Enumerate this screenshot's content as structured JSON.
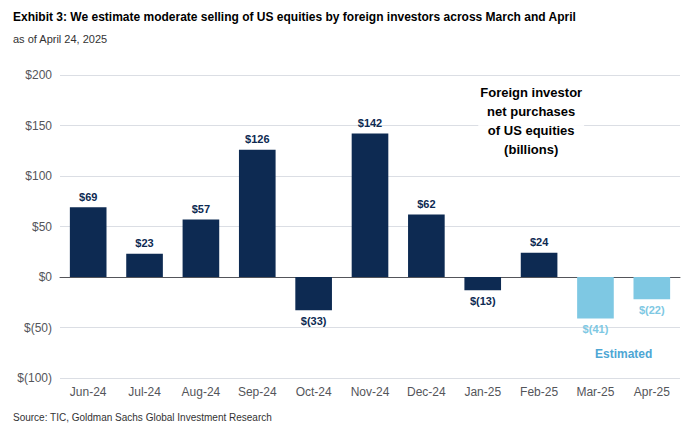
{
  "chart_data": {
    "type": "bar",
    "title": "Exhibit 3: We estimate moderate selling of US equities by foreign investors across March and April",
    "subtitle": "as of April 24, 2025",
    "source": "Source: TIC, Goldman Sachs Global Investment Research",
    "categories": [
      "Jun-24",
      "Jul-24",
      "Aug-24",
      "Sep-24",
      "Oct-24",
      "Nov-24",
      "Dec-24",
      "Jan-25",
      "Feb-25",
      "Mar-25",
      "Apr-25"
    ],
    "values": [
      69,
      23,
      57,
      126,
      -33,
      142,
      62,
      -13,
      24,
      -41,
      -22
    ],
    "value_labels": [
      "$69",
      "$23",
      "$57",
      "$126",
      "$(33)",
      "$142",
      "$62",
      "$(13)",
      "$24",
      "$(41)",
      "$(22)"
    ],
    "colors": [
      "#0d2a52",
      "#0d2a52",
      "#0d2a52",
      "#0d2a52",
      "#0d2a52",
      "#0d2a52",
      "#0d2a52",
      "#0d2a52",
      "#0d2a52",
      "#7ec8e3",
      "#7ec8e3"
    ],
    "data_labels": true,
    "ylim": [
      -100,
      200
    ],
    "yticks": [
      {
        "value": -100,
        "label": "$(100)"
      },
      {
        "value": -50,
        "label": "$(50)"
      },
      {
        "value": 0,
        "label": "$0"
      },
      {
        "value": 50,
        "label": "$50"
      },
      {
        "value": 100,
        "label": "$100"
      },
      {
        "value": 150,
        "label": "$150"
      },
      {
        "value": 200,
        "label": "$200"
      }
    ],
    "grid": true,
    "annotations": [
      {
        "text": "Foreign investor\nnet purchases\nof US equities\n(billions)",
        "color": "#000000"
      },
      {
        "text": "Estimated",
        "color": "#4da6d4"
      }
    ]
  }
}
